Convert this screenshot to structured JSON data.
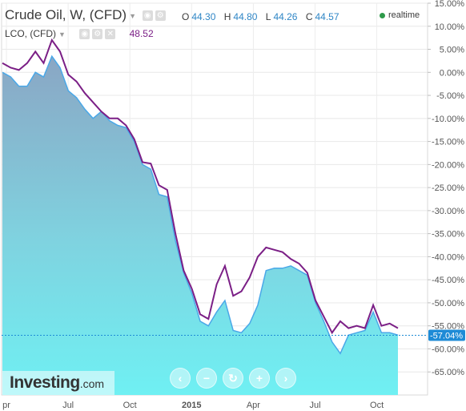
{
  "header": {
    "title": "Crude Oil, W, (CFD)",
    "ohlc": [
      {
        "label": "O",
        "value": "44.30"
      },
      {
        "label": "H",
        "value": "44.80"
      },
      {
        "label": "L",
        "value": "44.26"
      },
      {
        "label": "C",
        "value": "44.57"
      }
    ],
    "realtime": "realtime",
    "comparison": {
      "title": "LCO, (CFD)",
      "value": "48.52"
    }
  },
  "logo": {
    "main": "Investing",
    "domain": ".com"
  },
  "controls": [
    "left-arrow",
    "zoom-out",
    "reset",
    "zoom-in",
    "right-arrow"
  ],
  "colors": {
    "primary_line": "#4aa8e8",
    "area_fill": "#6ff0f3",
    "comparison_line": "#7b1f86",
    "last_value_badge": "#1e8bd6",
    "realtime_dot": "#2e9a4a"
  },
  "chart_data": {
    "type": "area",
    "x_axis": {
      "ticks": [
        "pr",
        "Jul",
        "Oct",
        "2015",
        "Apr",
        "Jul",
        "Oct"
      ]
    },
    "y_axis": {
      "unit": "%",
      "ylim": [
        -70,
        15
      ],
      "ticks": [
        "15.00%",
        "10.00%",
        "5.00%",
        "0.00%",
        "-5.00%",
        "-10.00%",
        "-15.00%",
        "-20.00%",
        "-25.00%",
        "-30.00%",
        "-35.00%",
        "-40.00%",
        "-45.00%",
        "-50.00%",
        "-55.00%",
        "-60.00%",
        "-65.00%"
      ]
    },
    "last_value": "-57.04%",
    "grid": true,
    "series": [
      {
        "name": "Crude Oil, W, (CFD)",
        "type": "area",
        "values": [
          0.0,
          -1.0,
          -3.0,
          -3.0,
          0.0,
          -1.0,
          3.5,
          1.0,
          -4.0,
          -5.5,
          -8.0,
          -10.0,
          -8.5,
          -10.5,
          -11.5,
          -12.0,
          -15.0,
          -20.0,
          -21.0,
          -26.5,
          -27.0,
          -36.5,
          -43.5,
          -48.0,
          -54.0,
          -55.0,
          -52.0,
          -49.5,
          -56.0,
          -56.5,
          -54.5,
          -50.5,
          -43.0,
          -42.5,
          -42.5,
          -42.0,
          -43.0,
          -44.0,
          -50.0,
          -54.0,
          -58.5,
          -61.0,
          -57.0,
          -56.5,
          -56.0,
          -52.0,
          -56.5,
          -56.5,
          -57.0
        ]
      },
      {
        "name": "LCO, (CFD)",
        "type": "line",
        "values": [
          2.0,
          1.0,
          0.5,
          2.0,
          4.5,
          2.0,
          7.0,
          4.5,
          -0.5,
          -2.0,
          -4.5,
          -6.5,
          -8.5,
          -10.0,
          -10.0,
          -11.5,
          -14.5,
          -19.5,
          -19.8,
          -24.5,
          -25.5,
          -35.0,
          -43.0,
          -47.0,
          -52.5,
          -53.5,
          -46.0,
          -42.0,
          -48.5,
          -47.5,
          -44.5,
          -40.0,
          -38.0,
          -38.5,
          -39.0,
          -40.5,
          -41.5,
          -43.5,
          -49.5,
          -53.0,
          -56.5,
          -54.0,
          -55.5,
          -55.0,
          -55.5,
          -50.5,
          -55.0,
          -54.5,
          -55.5
        ]
      }
    ]
  }
}
